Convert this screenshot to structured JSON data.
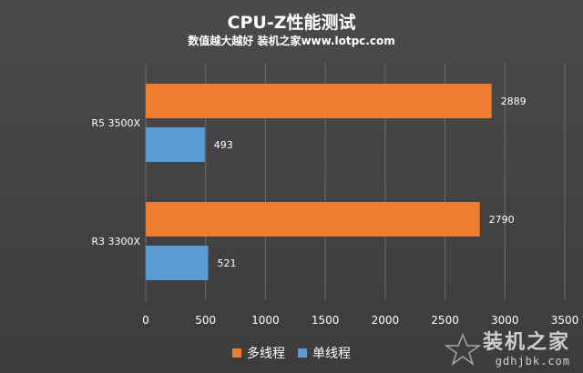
{
  "chart_data": {
    "type": "bar",
    "orientation": "horizontal",
    "title": "CPU-Z性能测试",
    "subtitle": "数值越大越好  装机之家www.lotpc.com",
    "categories": [
      "R5 3500X",
      "R3 3300X"
    ],
    "series": [
      {
        "name": "多线程",
        "color": "#ed7d31",
        "values": [
          2889,
          2790
        ]
      },
      {
        "name": "单线程",
        "color": "#5b9bd5",
        "values": [
          493,
          521
        ]
      }
    ],
    "xlim": [
      0,
      3500
    ],
    "xticks": [
      0,
      500,
      1000,
      1500,
      2000,
      2500,
      3000,
      3500
    ],
    "grid": true,
    "legend_position": "bottom"
  },
  "watermark": {
    "title": "装机之家",
    "url": "gdhjbk.com"
  }
}
